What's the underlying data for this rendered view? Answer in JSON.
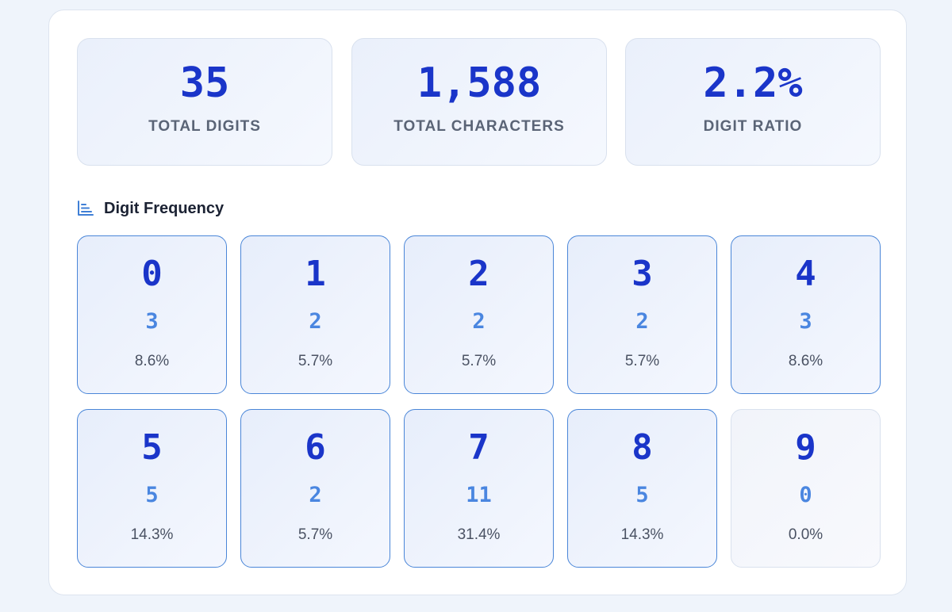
{
  "stats": [
    {
      "value": "35",
      "label": "TOTAL DIGITS"
    },
    {
      "value": "1,588",
      "label": "TOTAL CHARACTERS"
    },
    {
      "value": "2.2%",
      "label": "DIGIT RATIO"
    }
  ],
  "section": {
    "title": "Digit Frequency",
    "icon": "bar-chart-icon"
  },
  "digits": [
    {
      "digit": "0",
      "count": "3",
      "percent": "8.6%"
    },
    {
      "digit": "1",
      "count": "2",
      "percent": "5.7%"
    },
    {
      "digit": "2",
      "count": "2",
      "percent": "5.7%"
    },
    {
      "digit": "3",
      "count": "2",
      "percent": "5.7%"
    },
    {
      "digit": "4",
      "count": "3",
      "percent": "8.6%"
    },
    {
      "digit": "5",
      "count": "5",
      "percent": "14.3%"
    },
    {
      "digit": "6",
      "count": "2",
      "percent": "5.7%"
    },
    {
      "digit": "7",
      "count": "11",
      "percent": "31.4%"
    },
    {
      "digit": "8",
      "count": "5",
      "percent": "14.3%"
    },
    {
      "digit": "9",
      "count": "0",
      "percent": "0.0%"
    }
  ],
  "colors": {
    "accent": "#1a35c9",
    "count": "#4a86e0",
    "border_active": "#4a86d8",
    "border_inactive": "#d9e1ee"
  }
}
